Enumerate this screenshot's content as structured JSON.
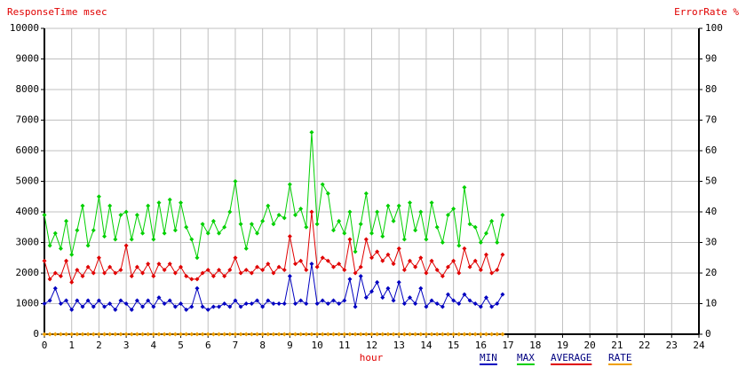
{
  "chart_data": {
    "type": "line",
    "y_label": "ResponseTime msec",
    "y2_label": "ErrorRate %",
    "x_label": "hour",
    "x": [
      0,
      0.2,
      0.4,
      0.6,
      0.8,
      1,
      1.2,
      1.4,
      1.6,
      1.8,
      2,
      2.2,
      2.4,
      2.6,
      2.8,
      3,
      3.2,
      3.4,
      3.6,
      3.8,
      4,
      4.2,
      4.4,
      4.6,
      4.8,
      5,
      5.2,
      5.4,
      5.6,
      5.8,
      6,
      6.2,
      6.4,
      6.6,
      6.8,
      7,
      7.2,
      7.4,
      7.6,
      7.8,
      8,
      8.2,
      8.4,
      8.6,
      8.8,
      9,
      9.2,
      9.4,
      9.6,
      9.8,
      10,
      10.2,
      10.4,
      10.6,
      10.8,
      11,
      11.2,
      11.4,
      11.6,
      11.8,
      12,
      12.2,
      12.4,
      12.6,
      12.8,
      13,
      13.2,
      13.4,
      13.6,
      13.8,
      14,
      14.2,
      14.4,
      14.6,
      14.8,
      15,
      15.2,
      15.4,
      15.6,
      15.8,
      16,
      16.2,
      16.4,
      16.6,
      16.8
    ],
    "series": [
      {
        "name": "MIN",
        "color": "#0000c0",
        "values": [
          1000,
          1100,
          1500,
          1000,
          1100,
          800,
          1100,
          900,
          1100,
          900,
          1100,
          900,
          1000,
          800,
          1100,
          1000,
          800,
          1100,
          900,
          1100,
          900,
          1200,
          1000,
          1100,
          900,
          1000,
          800,
          900,
          1500,
          900,
          800,
          900,
          900,
          1000,
          900,
          1100,
          900,
          1000,
          1000,
          1100,
          900,
          1100,
          1000,
          1000,
          1000,
          1900,
          1000,
          1100,
          1000,
          2300,
          1000,
          1100,
          1000,
          1100,
          1000,
          1100,
          1800,
          900,
          1900,
          1200,
          1400,
          1700,
          1200,
          1500,
          1100,
          1700,
          1000,
          1200,
          1000,
          1500,
          900,
          1100,
          1000,
          900,
          1300,
          1100,
          1000,
          1300,
          1100,
          1000,
          900,
          1200,
          900,
          1000,
          1300
        ]
      },
      {
        "name": "MAX",
        "color": "#00d000",
        "values": [
          3900,
          2900,
          3300,
          2800,
          3700,
          2600,
          3400,
          4200,
          2900,
          3400,
          4500,
          3200,
          4200,
          3100,
          3900,
          4000,
          3100,
          3900,
          3300,
          4200,
          3100,
          4300,
          3300,
          4400,
          3400,
          4300,
          3500,
          3100,
          2500,
          3600,
          3300,
          3700,
          3300,
          3500,
          4000,
          5000,
          3600,
          2800,
          3600,
          3300,
          3700,
          4200,
          3600,
          3900,
          3800,
          4900,
          3900,
          4100,
          3500,
          6600,
          3600,
          4900,
          4600,
          3400,
          3700,
          3300,
          4000,
          2700,
          3600,
          4600,
          3300,
          4000,
          3200,
          4200,
          3700,
          4200,
          3100,
          4300,
          3400,
          4000,
          3100,
          4300,
          3500,
          3000,
          3900,
          4100,
          2900,
          4800,
          3600,
          3500,
          3000,
          3300,
          3700,
          3000,
          3900
        ]
      },
      {
        "name": "AVERAGE",
        "color": "#e00000",
        "values": [
          2400,
          1800,
          2000,
          1900,
          2400,
          1700,
          2100,
          1900,
          2200,
          2000,
          2500,
          2000,
          2200,
          2000,
          2100,
          2900,
          1900,
          2200,
          2000,
          2300,
          1900,
          2300,
          2100,
          2300,
          2000,
          2200,
          1900,
          1800,
          1800,
          2000,
          2100,
          1900,
          2100,
          1900,
          2100,
          2500,
          2000,
          2100,
          2000,
          2200,
          2100,
          2300,
          2000,
          2200,
          2100,
          3200,
          2300,
          2400,
          2100,
          4000,
          2200,
          2500,
          2400,
          2200,
          2300,
          2100,
          3100,
          2000,
          2200,
          3100,
          2500,
          2700,
          2400,
          2600,
          2300,
          2800,
          2100,
          2400,
          2200,
          2500,
          2000,
          2400,
          2100,
          1900,
          2200,
          2400,
          2000,
          2800,
          2200,
          2400,
          2100,
          2600,
          2000,
          2100,
          2600
        ]
      },
      {
        "name": "RATE",
        "color": "#f0a000",
        "axis": "y2",
        "values": [
          0,
          0,
          0,
          0,
          0,
          0,
          0,
          0,
          0,
          0,
          0,
          0,
          0,
          0,
          0,
          0,
          0,
          0,
          0,
          0,
          0,
          0,
          0,
          0,
          0,
          0,
          0,
          0,
          0,
          0,
          0,
          0,
          0,
          0,
          0,
          0,
          0,
          0,
          0,
          0,
          0,
          0,
          0,
          0,
          0,
          0,
          0,
          0,
          0,
          0,
          0,
          0,
          0,
          0,
          0,
          0,
          0,
          0,
          0,
          0,
          0,
          0,
          0,
          0,
          0,
          0,
          0,
          0,
          0,
          0,
          0,
          0,
          0,
          0,
          0,
          0,
          0,
          0,
          0,
          0,
          0,
          0,
          0,
          0,
          0
        ]
      }
    ],
    "xlim": [
      0,
      24
    ],
    "xticks": [
      0,
      1,
      2,
      3,
      4,
      5,
      6,
      7,
      8,
      9,
      10,
      11,
      12,
      13,
      14,
      15,
      16,
      17,
      18,
      19,
      20,
      21,
      22,
      23,
      24
    ],
    "ylim": [
      0,
      10000
    ],
    "yticks": [
      0,
      1000,
      2000,
      3000,
      4000,
      5000,
      6000,
      7000,
      8000,
      9000,
      10000
    ],
    "y2lim": [
      0,
      100
    ],
    "y2ticks": [
      0,
      10,
      20,
      30,
      40,
      50,
      60,
      70,
      80,
      90,
      100
    ],
    "grid": true
  }
}
